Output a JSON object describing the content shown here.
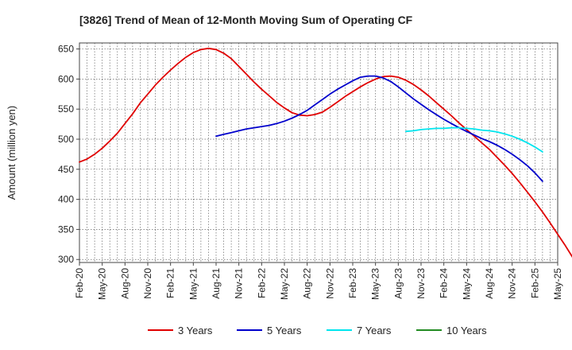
{
  "chart_data": {
    "type": "line",
    "title": "[3826]  Trend of Mean of 12-Month Moving Sum of Operating CF",
    "xlabel": "",
    "ylabel": "Amount (million yen)",
    "ylim": [
      295,
      660
    ],
    "yticks": [
      300,
      350,
      400,
      450,
      500,
      550,
      600,
      650
    ],
    "xticks": [
      "Feb-20",
      "May-20",
      "Aug-20",
      "Nov-20",
      "Feb-21",
      "May-21",
      "Aug-21",
      "Nov-21",
      "Feb-22",
      "May-22",
      "Aug-22",
      "Nov-22",
      "Feb-23",
      "May-23",
      "Aug-23",
      "Nov-23",
      "Feb-24",
      "May-24",
      "Aug-24",
      "Nov-24",
      "Feb-25",
      "May-25"
    ],
    "grid": true,
    "legend_position": "bottom",
    "series": [
      {
        "name": "3 Years",
        "color": "#e00000",
        "points": [
          [
            0,
            462
          ],
          [
            1,
            467
          ],
          [
            2,
            475
          ],
          [
            3,
            485
          ],
          [
            4,
            497
          ],
          [
            5,
            510
          ],
          [
            6,
            526
          ],
          [
            7,
            542
          ],
          [
            8,
            560
          ],
          [
            9,
            575
          ],
          [
            10,
            590
          ],
          [
            11,
            603
          ],
          [
            12,
            615
          ],
          [
            13,
            626
          ],
          [
            14,
            636
          ],
          [
            15,
            644
          ],
          [
            16,
            649
          ],
          [
            17,
            651
          ],
          [
            18,
            649
          ],
          [
            19,
            643
          ],
          [
            20,
            634
          ],
          [
            21,
            621
          ],
          [
            22,
            608
          ],
          [
            23,
            595
          ],
          [
            24,
            583
          ],
          [
            25,
            572
          ],
          [
            26,
            561
          ],
          [
            27,
            552
          ],
          [
            28,
            544
          ],
          [
            29,
            540
          ],
          [
            30,
            539
          ],
          [
            31,
            541
          ],
          [
            32,
            545
          ],
          [
            33,
            553
          ],
          [
            34,
            562
          ],
          [
            35,
            571
          ],
          [
            36,
            579
          ],
          [
            37,
            587
          ],
          [
            38,
            594
          ],
          [
            39,
            600
          ],
          [
            40,
            604
          ],
          [
            41,
            605
          ],
          [
            42,
            603
          ],
          [
            43,
            598
          ],
          [
            44,
            591
          ],
          [
            45,
            582
          ],
          [
            46,
            572
          ],
          [
            47,
            561
          ],
          [
            48,
            550
          ],
          [
            49,
            539
          ],
          [
            50,
            527
          ],
          [
            51,
            516
          ],
          [
            52,
            505
          ],
          [
            53,
            494
          ],
          [
            54,
            483
          ],
          [
            55,
            470
          ],
          [
            56,
            457
          ],
          [
            57,
            443
          ],
          [
            58,
            428
          ],
          [
            59,
            412
          ],
          [
            60,
            396
          ],
          [
            61,
            379
          ],
          [
            62,
            361
          ],
          [
            63,
            342
          ],
          [
            64,
            323
          ],
          [
            65,
            303
          ]
        ]
      },
      {
        "name": "5 Years",
        "color": "#0000cc",
        "points": [
          [
            18,
            505
          ],
          [
            19,
            508
          ],
          [
            20,
            511
          ],
          [
            21,
            514
          ],
          [
            22,
            517
          ],
          [
            23,
            519
          ],
          [
            24,
            521
          ],
          [
            25,
            523
          ],
          [
            26,
            526
          ],
          [
            27,
            530
          ],
          [
            28,
            535
          ],
          [
            29,
            541
          ],
          [
            30,
            548
          ],
          [
            31,
            557
          ],
          [
            32,
            566
          ],
          [
            33,
            575
          ],
          [
            34,
            583
          ],
          [
            35,
            590
          ],
          [
            36,
            597
          ],
          [
            37,
            603
          ],
          [
            38,
            605
          ],
          [
            39,
            605
          ],
          [
            40,
            602
          ],
          [
            41,
            596
          ],
          [
            42,
            587
          ],
          [
            43,
            577
          ],
          [
            44,
            567
          ],
          [
            45,
            558
          ],
          [
            46,
            549
          ],
          [
            47,
            541
          ],
          [
            48,
            533
          ],
          [
            49,
            526
          ],
          [
            50,
            519
          ],
          [
            51,
            513
          ],
          [
            52,
            507
          ],
          [
            53,
            501
          ],
          [
            54,
            496
          ],
          [
            55,
            490
          ],
          [
            56,
            483
          ],
          [
            57,
            475
          ],
          [
            58,
            466
          ],
          [
            59,
            456
          ],
          [
            60,
            444
          ],
          [
            61,
            430
          ]
        ]
      },
      {
        "name": "7 Years",
        "color": "#00e5ee",
        "points": [
          [
            43,
            513
          ],
          [
            44,
            514
          ],
          [
            45,
            516
          ],
          [
            46,
            517
          ],
          [
            47,
            518
          ],
          [
            48,
            518
          ],
          [
            49,
            519
          ],
          [
            50,
            519
          ],
          [
            51,
            518
          ],
          [
            52,
            517
          ],
          [
            53,
            515
          ],
          [
            54,
            514
          ],
          [
            55,
            512
          ],
          [
            56,
            509
          ],
          [
            57,
            505
          ],
          [
            58,
            500
          ],
          [
            59,
            494
          ],
          [
            60,
            487
          ],
          [
            61,
            479
          ]
        ]
      },
      {
        "name": "10 Years",
        "color": "#228b22",
        "points": []
      }
    ]
  }
}
